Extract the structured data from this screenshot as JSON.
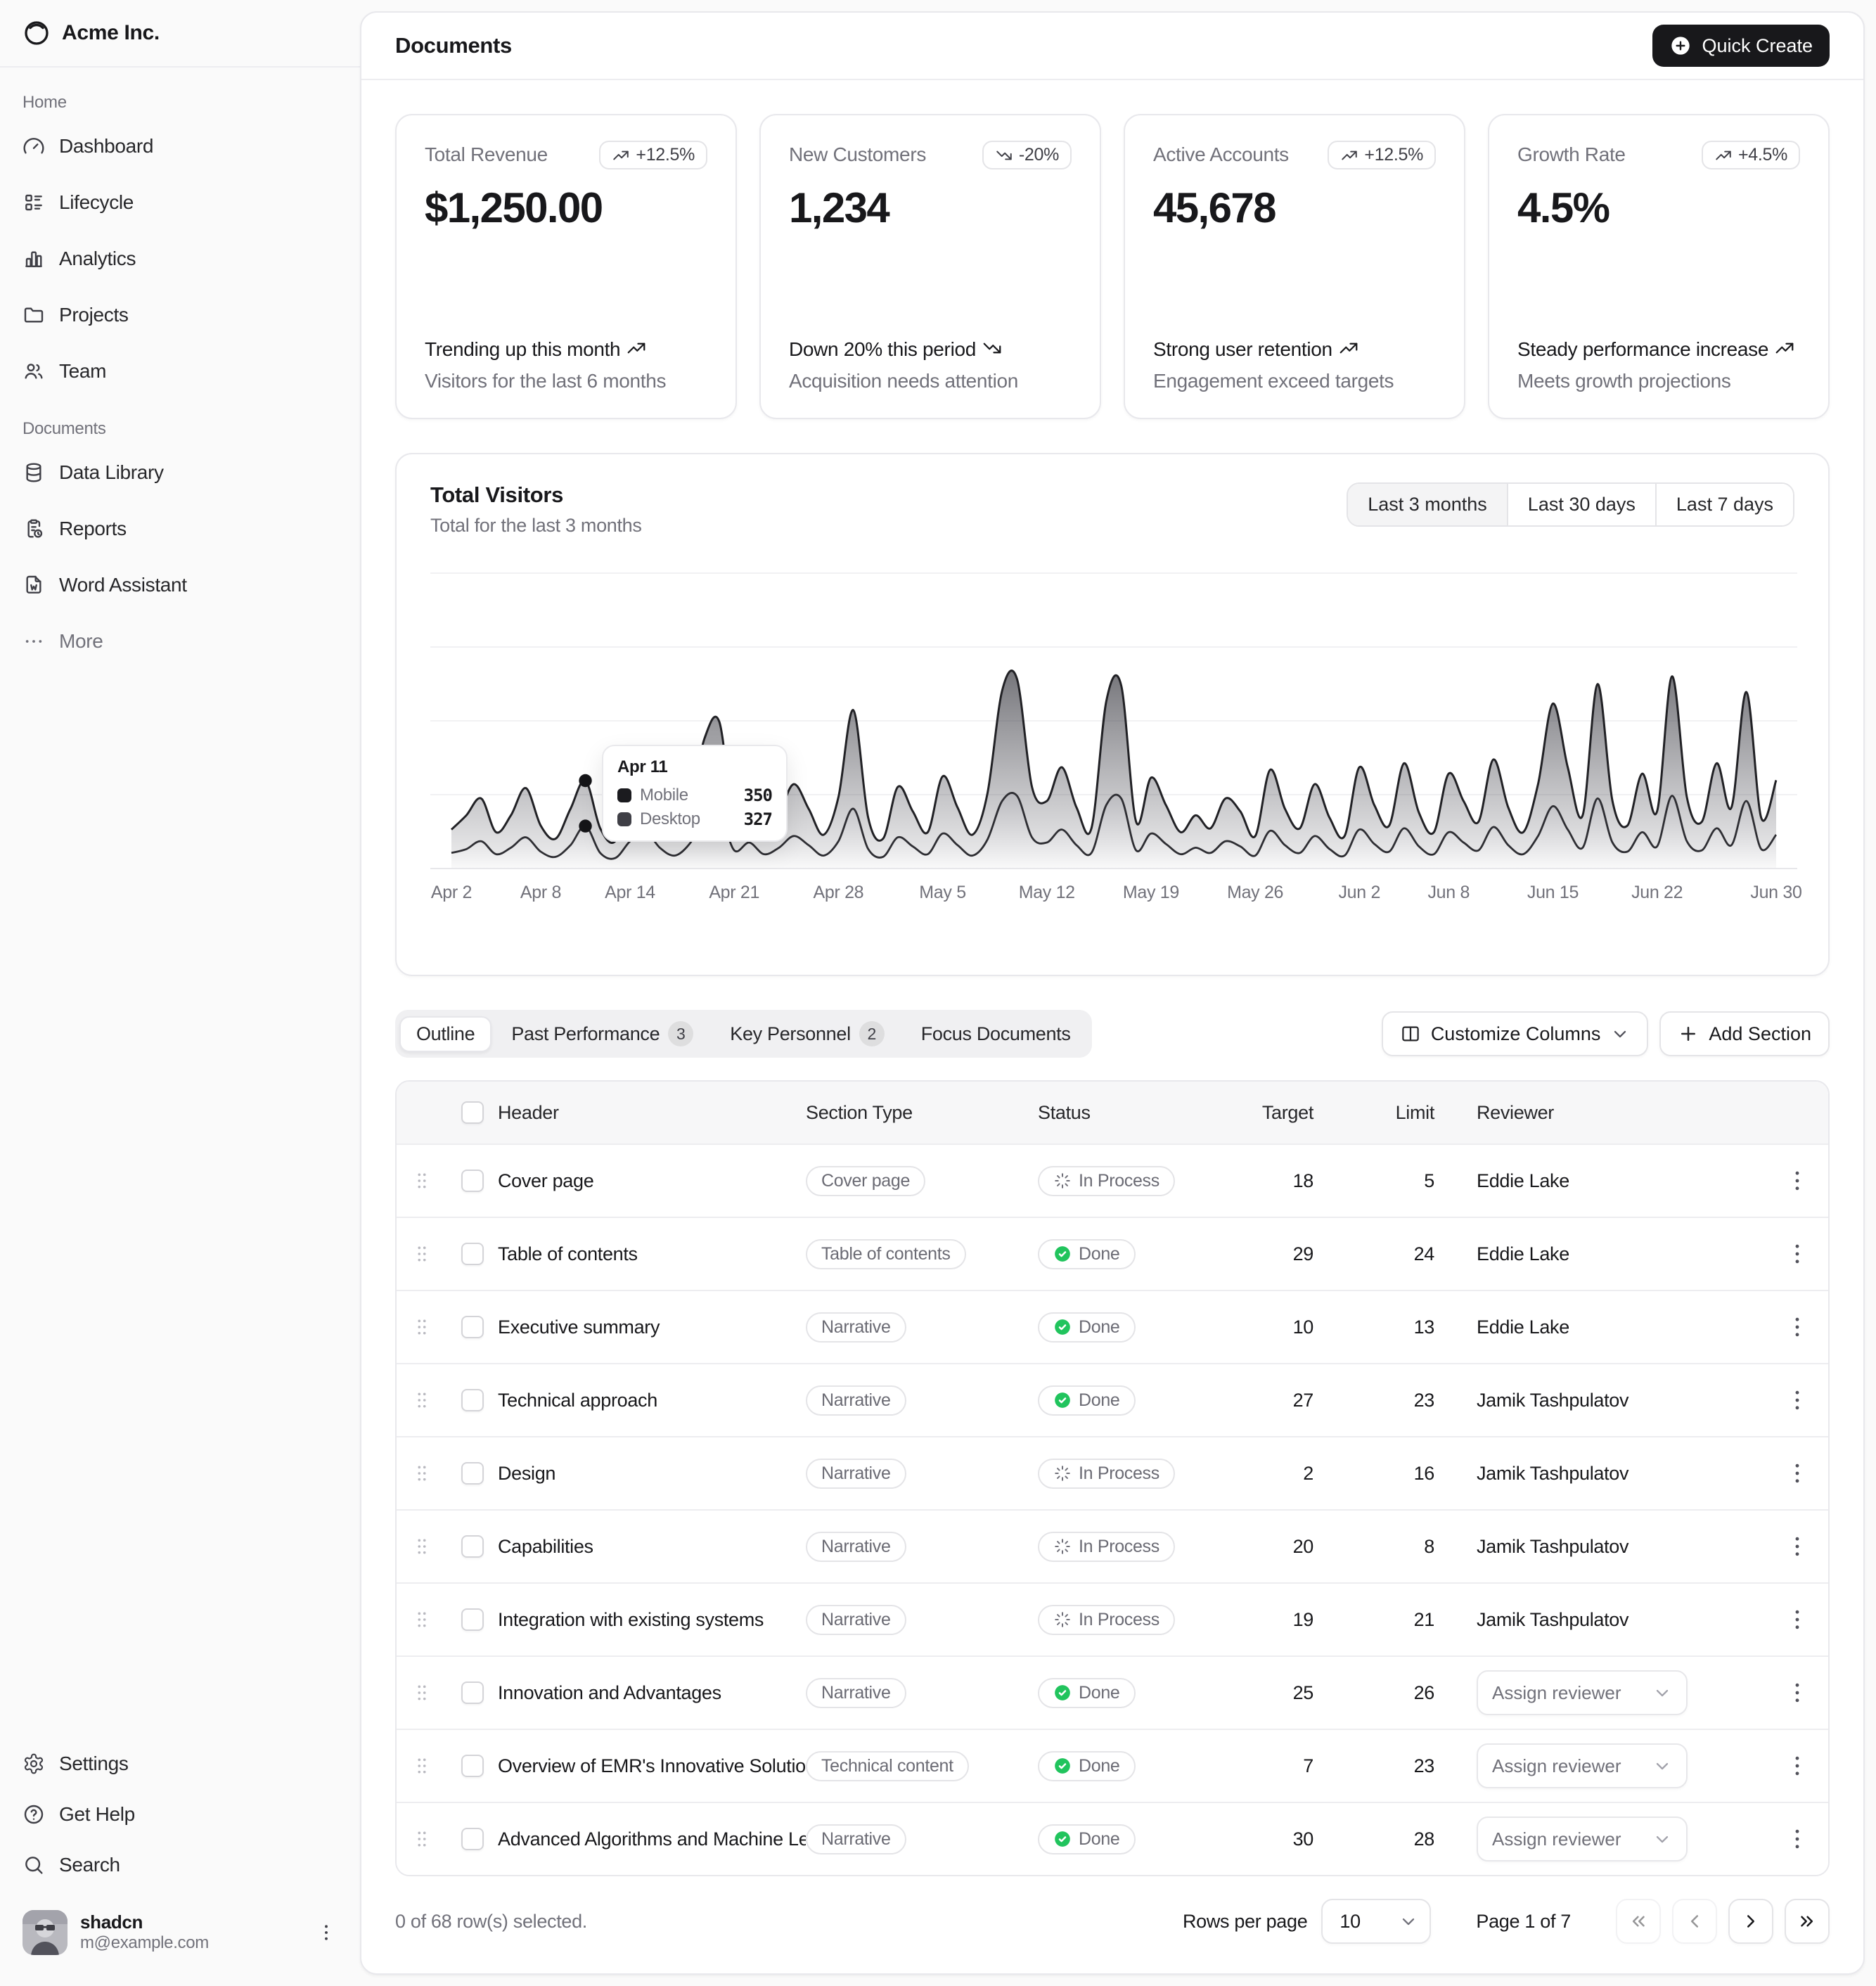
{
  "brand": {
    "name": "Acme Inc."
  },
  "topbar": {
    "title": "Documents",
    "quick_create_label": "Quick Create"
  },
  "sidebar": {
    "groups": [
      {
        "label": "Home",
        "items": [
          {
            "label": "Dashboard",
            "icon": "gauge-icon"
          },
          {
            "label": "Lifecycle",
            "icon": "list-details-icon"
          },
          {
            "label": "Analytics",
            "icon": "chart-bar-icon"
          },
          {
            "label": "Projects",
            "icon": "folder-icon"
          },
          {
            "label": "Team",
            "icon": "users-icon"
          }
        ]
      },
      {
        "label": "Documents",
        "items": [
          {
            "label": "Data Library",
            "icon": "database-icon"
          },
          {
            "label": "Reports",
            "icon": "report-icon"
          },
          {
            "label": "Word Assistant",
            "icon": "file-word-icon"
          },
          {
            "label": "More",
            "icon": "dots-icon",
            "muted": true
          }
        ]
      }
    ],
    "footer_items": [
      {
        "label": "Settings",
        "icon": "settings-icon"
      },
      {
        "label": "Get Help",
        "icon": "help-icon"
      },
      {
        "label": "Search",
        "icon": "search-icon"
      }
    ],
    "user": {
      "name": "shadcn",
      "email": "m@example.com"
    }
  },
  "cards": [
    {
      "label": "Total Revenue",
      "badge": "+12.5%",
      "trend": "up",
      "value": "$1,250.00",
      "footer_title": "Trending up this month",
      "footer_desc": "Visitors for the last 6 months"
    },
    {
      "label": "New Customers",
      "badge": "-20%",
      "trend": "down",
      "value": "1,234",
      "footer_title": "Down 20% this period",
      "footer_desc": "Acquisition needs attention"
    },
    {
      "label": "Active Accounts",
      "badge": "+12.5%",
      "trend": "up",
      "value": "45,678",
      "footer_title": "Strong user retention",
      "footer_desc": "Engagement exceed targets"
    },
    {
      "label": "Growth Rate",
      "badge": "+4.5%",
      "trend": "up",
      "value": "4.5%",
      "footer_title": "Steady performance increase",
      "footer_desc": "Meets growth projections"
    }
  ],
  "chart": {
    "title": "Total Visitors",
    "subtitle": "Total for the last 3 months",
    "ranges": [
      "Last 3 months",
      "Last 30 days",
      "Last 7 days"
    ],
    "active_range": "Last 3 months",
    "tooltip": {
      "date": "Apr 11",
      "rows": [
        {
          "label": "Mobile",
          "value": "350",
          "color": "#1b1b1f"
        },
        {
          "label": "Desktop",
          "value": "327",
          "color": "#3f3f46"
        }
      ]
    }
  },
  "chart_data": {
    "type": "area",
    "stacked": true,
    "title": "Total Visitors",
    "x_tick_labels": [
      "Apr 2",
      "Apr 8",
      "Apr 14",
      "Apr 21",
      "Apr 28",
      "May 5",
      "May 12",
      "May 19",
      "May 26",
      "Jun 2",
      "Jun 8",
      "Jun 15",
      "Jun 22",
      "Jun 30"
    ],
    "x_tick_day_index": [
      0,
      6,
      12,
      19,
      26,
      33,
      40,
      47,
      54,
      61,
      67,
      74,
      81,
      89
    ],
    "ylim": [
      0,
      2380
    ],
    "grid": "horizontal",
    "highlight_day_index": 9,
    "series": [
      {
        "name": "Desktop",
        "color": "#3f3f46",
        "values": [
          120,
          150,
          210,
          110,
          160,
          240,
          130,
          90,
          180,
          327,
          120,
          80,
          210,
          290,
          160,
          100,
          190,
          380,
          430,
          140,
          200,
          110,
          160,
          250,
          180,
          100,
          210,
          460,
          150,
          90,
          240,
          170,
          110,
          270,
          180,
          100,
          220,
          520,
          560,
          240,
          200,
          300,
          180,
          120,
          490,
          540,
          140,
          270,
          190,
          110,
          160,
          120,
          210,
          170,
          100,
          290,
          180,
          120,
          250,
          150,
          100,
          300,
          190,
          130,
          310,
          170,
          110,
          280,
          200,
          140,
          320,
          180,
          110,
          250,
          480,
          300,
          160,
          540,
          200,
          130,
          280,
          170,
          560,
          210,
          140,
          310,
          180,
          520,
          150,
          260
        ]
      },
      {
        "name": "Mobile",
        "color": "#1b1b1f",
        "values": [
          180,
          260,
          330,
          170,
          250,
          380,
          200,
          140,
          280,
          350,
          190,
          130,
          340,
          460,
          250,
          160,
          300,
          620,
          700,
          220,
          320,
          170,
          260,
          400,
          280,
          160,
          340,
          760,
          240,
          140,
          390,
          270,
          170,
          440,
          290,
          160,
          350,
          850,
          900,
          390,
          320,
          480,
          290,
          190,
          800,
          870,
          220,
          430,
          300,
          170,
          250,
          190,
          330,
          270,
          150,
          470,
          280,
          190,
          400,
          240,
          150,
          480,
          300,
          200,
          500,
          260,
          170,
          450,
          320,
          220,
          520,
          290,
          170,
          400,
          790,
          480,
          250,
          880,
          320,
          200,
          450,
          270,
          920,
          340,
          220,
          500,
          290,
          840,
          240,
          420
        ]
      }
    ]
  },
  "tabs": {
    "items": [
      {
        "label": "Outline",
        "active": true
      },
      {
        "label": "Past Performance",
        "count": "3"
      },
      {
        "label": "Key Personnel",
        "count": "2"
      },
      {
        "label": "Focus Documents"
      }
    ],
    "customize_label": "Customize Columns",
    "add_label": "Add Section"
  },
  "table": {
    "columns": [
      "Header",
      "Section Type",
      "Status",
      "Target",
      "Limit",
      "Reviewer"
    ],
    "rows": [
      {
        "header": "Cover page",
        "type": "Cover page",
        "status": "In Process",
        "target": "18",
        "limit": "5",
        "reviewer": "Eddie Lake"
      },
      {
        "header": "Table of contents",
        "type": "Table of contents",
        "status": "Done",
        "target": "29",
        "limit": "24",
        "reviewer": "Eddie Lake"
      },
      {
        "header": "Executive summary",
        "type": "Narrative",
        "status": "Done",
        "target": "10",
        "limit": "13",
        "reviewer": "Eddie Lake"
      },
      {
        "header": "Technical approach",
        "type": "Narrative",
        "status": "Done",
        "target": "27",
        "limit": "23",
        "reviewer": "Jamik Tashpulatov"
      },
      {
        "header": "Design",
        "type": "Narrative",
        "status": "In Process",
        "target": "2",
        "limit": "16",
        "reviewer": "Jamik Tashpulatov"
      },
      {
        "header": "Capabilities",
        "type": "Narrative",
        "status": "In Process",
        "target": "20",
        "limit": "8",
        "reviewer": "Jamik Tashpulatov"
      },
      {
        "header": "Integration with existing systems",
        "type": "Narrative",
        "status": "In Process",
        "target": "19",
        "limit": "21",
        "reviewer": "Jamik Tashpulatov"
      },
      {
        "header": "Innovation and Advantages",
        "type": "Narrative",
        "status": "Done",
        "target": "25",
        "limit": "26",
        "reviewer": null
      },
      {
        "header": "Overview of EMR's Innovative Solutions",
        "type": "Technical content",
        "status": "Done",
        "target": "7",
        "limit": "23",
        "reviewer": null
      },
      {
        "header": "Advanced Algorithms and Machine Learning",
        "type": "Narrative",
        "status": "Done",
        "target": "30",
        "limit": "28",
        "reviewer": null
      }
    ],
    "assign_label": "Assign reviewer"
  },
  "pagination": {
    "selected_text": "0 of 68 row(s) selected.",
    "rows_per_page_label": "Rows per page",
    "rows_per_page_value": "10",
    "page_label": "Page 1 of 7"
  }
}
